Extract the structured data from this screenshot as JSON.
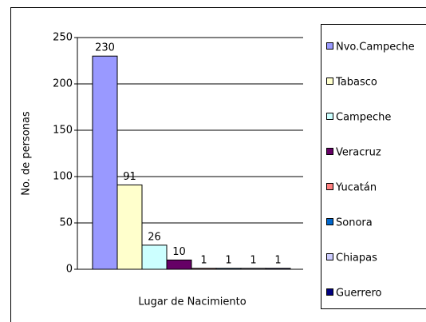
{
  "chart_data": {
    "type": "bar",
    "xlabel": "Lugar de Nacimiento",
    "ylabel": "No. de personas",
    "series": [
      {
        "name": "Nvo.Campeche",
        "color": "#9999ff",
        "values": [
          230
        ]
      },
      {
        "name": "Tabasco",
        "color": "#ffffcc",
        "values": [
          91
        ]
      },
      {
        "name": "Campeche",
        "color": "#ccffff",
        "values": [
          26
        ]
      },
      {
        "name": "Veracruz",
        "color": "#660066",
        "values": [
          10
        ]
      },
      {
        "name": "Yucatán",
        "color": "#ff8080",
        "values": [
          1
        ]
      },
      {
        "name": "Sonora",
        "color": "#0066cc",
        "values": [
          1
        ]
      },
      {
        "name": "Chiapas",
        "color": "#ccccff",
        "values": [
          1
        ]
      },
      {
        "name": "Guerrero",
        "color": "#000080",
        "values": [
          1
        ]
      }
    ],
    "ylim": [
      0,
      250
    ],
    "yticks": [
      0,
      50,
      100,
      150,
      200,
      250
    ],
    "grid": true,
    "legend": "right"
  }
}
